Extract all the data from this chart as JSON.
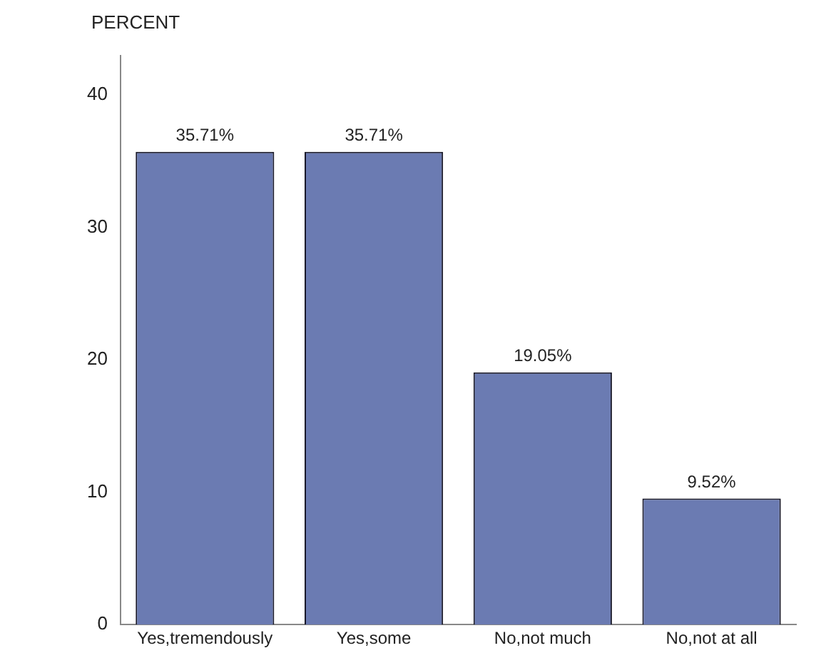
{
  "chart_data": {
    "type": "bar",
    "ylabel": "PERCENT",
    "categories": [
      "Yes,tremendously",
      "Yes,some",
      "No,not much",
      "No,not at all"
    ],
    "values": [
      35.71,
      35.71,
      19.05,
      9.52
    ],
    "color": "#6b7bb2",
    "value_labels": [
      "35.71%",
      "35.71%",
      "19.05%",
      "9.52%"
    ],
    "ylim": [
      0,
      43
    ],
    "yticks": [
      0,
      10,
      20,
      30,
      40
    ],
    "grid": false,
    "legend": false
  }
}
